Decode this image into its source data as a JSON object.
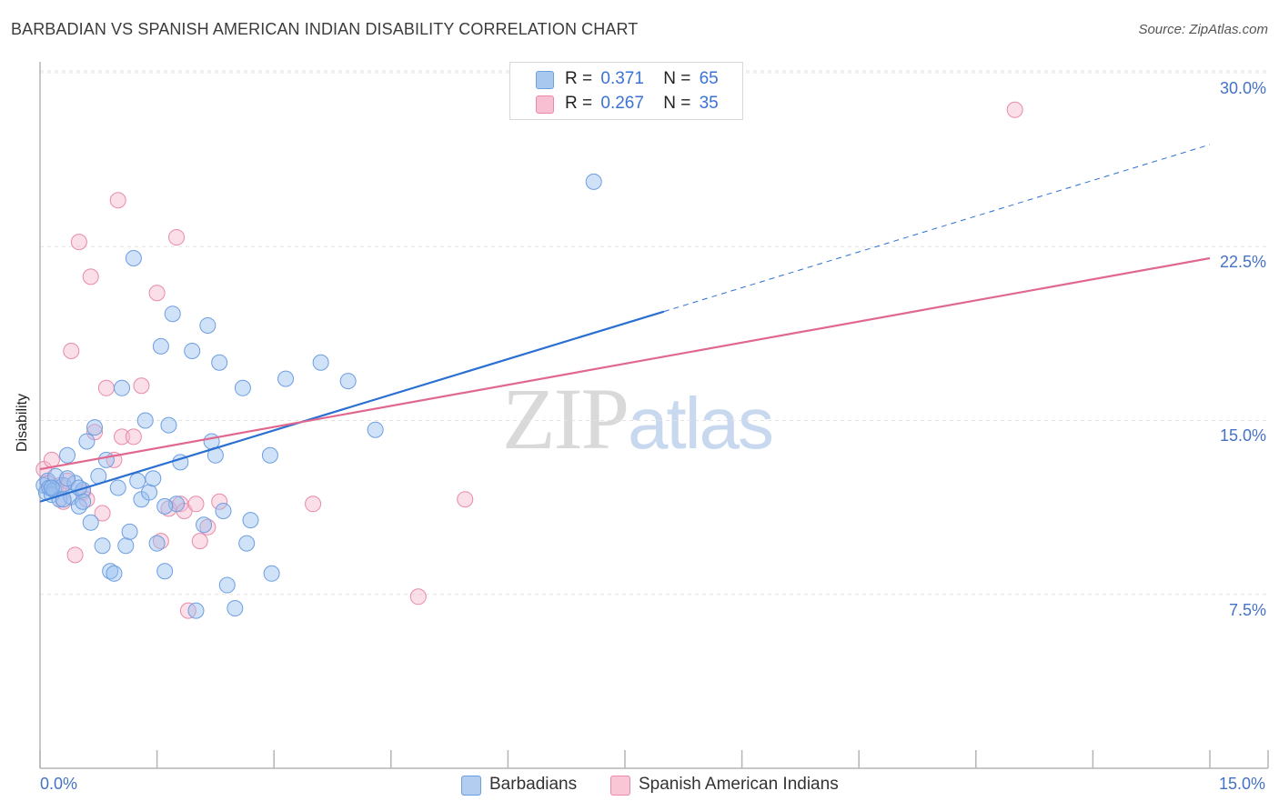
{
  "header": {
    "title": "BARBADIAN VS SPANISH AMERICAN INDIAN DISABILITY CORRELATION CHART",
    "source": "Source: ZipAtlas.com"
  },
  "watermark": {
    "zip": "ZIP",
    "atlas": "atlas"
  },
  "legend": {
    "r_label": "R =",
    "n_label": "N =",
    "rows": [
      {
        "r": "0.371",
        "n": "65",
        "color": "#a9c8f0",
        "border": "#6d9ee0"
      },
      {
        "r": "0.267",
        "n": "35",
        "color": "#f7bfd1",
        "border": "#e98aaa"
      }
    ]
  },
  "bottom_legend": [
    "Barbadians",
    "Spanish American Indians"
  ],
  "colors": {
    "blue_fill": "rgba(150,190,240,0.45)",
    "blue_stroke": "#6d9ee0",
    "blue_line": "#2b70d1",
    "pink_fill": "rgba(247,183,203,0.45)",
    "pink_stroke": "#e98aaa",
    "pink_line": "#e0688f",
    "grid": "#e3e3e3",
    "axis": "#b5b5b5"
  },
  "chart_data": {
    "type": "scatter",
    "title": "BARBADIAN VS SPANISH AMERICAN INDIAN DISABILITY CORRELATION CHART",
    "xlabel": "",
    "ylabel": "Disability",
    "xlim": [
      0,
      15
    ],
    "ylim": [
      0,
      31
    ],
    "x_tick_labels": [
      "0.0%",
      "15.0%"
    ],
    "y_tick_labels": [
      "7.5%",
      "15.0%",
      "22.5%",
      "30.0%"
    ],
    "y_ticks": [
      7.5,
      15.0,
      22.5,
      30.0
    ],
    "grid": true,
    "legend_position": "top-center",
    "series": [
      {
        "name": "Barbadians",
        "r": 0.371,
        "n": 65,
        "trend": {
          "x": [
            0.0,
            8.0
          ],
          "y": [
            11.5,
            19.7
          ],
          "extended_to": [
            15.0,
            26.9
          ]
        },
        "points": [
          [
            0.05,
            12.2
          ],
          [
            0.08,
            11.9
          ],
          [
            0.1,
            12.4
          ],
          [
            0.12,
            12.1
          ],
          [
            0.15,
            11.8
          ],
          [
            0.18,
            12.0
          ],
          [
            0.2,
            12.6
          ],
          [
            0.25,
            11.6
          ],
          [
            0.3,
            12.2
          ],
          [
            0.35,
            13.5
          ],
          [
            0.4,
            11.7
          ],
          [
            0.45,
            12.3
          ],
          [
            0.5,
            11.3
          ],
          [
            0.55,
            12.0
          ],
          [
            0.6,
            14.1
          ],
          [
            0.65,
            10.6
          ],
          [
            0.7,
            14.7
          ],
          [
            0.75,
            12.6
          ],
          [
            0.8,
            9.6
          ],
          [
            0.85,
            13.3
          ],
          [
            0.9,
            8.5
          ],
          [
            0.95,
            8.4
          ],
          [
            1.0,
            12.1
          ],
          [
            1.05,
            16.4
          ],
          [
            1.1,
            9.6
          ],
          [
            1.15,
            10.2
          ],
          [
            1.2,
            22.0
          ],
          [
            1.25,
            12.4
          ],
          [
            1.3,
            11.6
          ],
          [
            1.35,
            15.0
          ],
          [
            1.4,
            11.9
          ],
          [
            1.45,
            12.5
          ],
          [
            1.5,
            9.7
          ],
          [
            1.55,
            18.2
          ],
          [
            1.6,
            8.5
          ],
          [
            1.65,
            14.8
          ],
          [
            1.7,
            19.6
          ],
          [
            1.75,
            11.4
          ],
          [
            1.8,
            13.2
          ],
          [
            1.95,
            18.0
          ],
          [
            2.0,
            6.8
          ],
          [
            2.1,
            10.5
          ],
          [
            2.15,
            19.1
          ],
          [
            2.2,
            14.1
          ],
          [
            2.25,
            13.5
          ],
          [
            2.3,
            17.5
          ],
          [
            2.35,
            11.1
          ],
          [
            2.4,
            7.9
          ],
          [
            2.5,
            6.9
          ],
          [
            2.6,
            16.4
          ],
          [
            2.65,
            9.7
          ],
          [
            2.7,
            10.7
          ],
          [
            2.95,
            13.5
          ],
          [
            2.97,
            8.4
          ],
          [
            3.15,
            16.8
          ],
          [
            3.6,
            17.5
          ],
          [
            3.95,
            16.7
          ],
          [
            4.3,
            14.6
          ],
          [
            7.1,
            25.3
          ],
          [
            0.15,
            12.1
          ],
          [
            0.35,
            12.5
          ],
          [
            0.55,
            11.5
          ],
          [
            0.5,
            12.1
          ],
          [
            1.6,
            11.3
          ],
          [
            0.3,
            11.6
          ]
        ]
      },
      {
        "name": "Spanish American Indians",
        "r": 0.267,
        "n": 35,
        "trend": {
          "x": [
            0.0,
            15.0
          ],
          "y": [
            12.9,
            22.0
          ]
        },
        "points": [
          [
            0.05,
            12.9
          ],
          [
            0.1,
            12.3
          ],
          [
            0.15,
            13.3
          ],
          [
            0.2,
            12.1
          ],
          [
            0.25,
            12.2
          ],
          [
            0.3,
            11.5
          ],
          [
            0.35,
            12.4
          ],
          [
            0.4,
            18.0
          ],
          [
            0.45,
            9.2
          ],
          [
            0.5,
            22.7
          ],
          [
            0.55,
            11.9
          ],
          [
            0.6,
            11.6
          ],
          [
            0.65,
            21.2
          ],
          [
            0.7,
            14.5
          ],
          [
            0.8,
            11.0
          ],
          [
            0.85,
            16.4
          ],
          [
            0.95,
            13.3
          ],
          [
            1.0,
            24.5
          ],
          [
            1.05,
            14.3
          ],
          [
            1.2,
            14.3
          ],
          [
            1.3,
            16.5
          ],
          [
            1.5,
            20.5
          ],
          [
            1.55,
            9.8
          ],
          [
            1.65,
            11.2
          ],
          [
            1.75,
            22.9
          ],
          [
            1.8,
            11.4
          ],
          [
            1.85,
            11.1
          ],
          [
            1.9,
            6.8
          ],
          [
            2.0,
            11.4
          ],
          [
            2.05,
            9.8
          ],
          [
            2.15,
            10.4
          ],
          [
            2.3,
            11.5
          ],
          [
            3.5,
            11.4
          ],
          [
            4.85,
            7.4
          ],
          [
            5.45,
            11.6
          ]
        ]
      }
    ],
    "extra_point_note": [
      12.5,
      28.4
    ]
  }
}
